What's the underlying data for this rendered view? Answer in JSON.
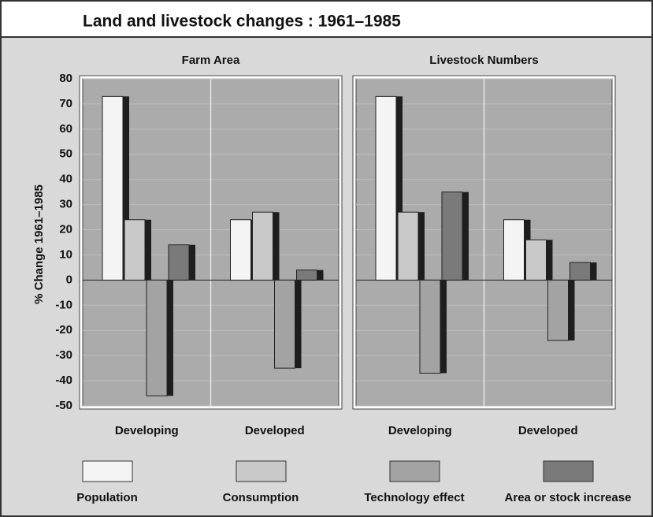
{
  "chart_data": {
    "type": "bar",
    "title": "Land and livestock changes : 1961–1985",
    "y_label": "% Change 1961–1985",
    "ylim": [
      -50,
      80
    ],
    "yticks": [
      -50,
      -40,
      -30,
      -20,
      -10,
      0,
      10,
      20,
      30,
      40,
      50,
      60,
      70,
      80
    ],
    "grid": true,
    "series": [
      {
        "name": "Population",
        "color": "#f4f4f4"
      },
      {
        "name": "Consumption",
        "color": "#c9c9c9"
      },
      {
        "name": "Technology effect",
        "color": "#a3a3a3"
      },
      {
        "name": "Area or stock increase",
        "color": "#7a7a7a"
      }
    ],
    "panels": [
      {
        "title": "Farm Area",
        "categories": [
          "Developing",
          "Developed"
        ],
        "series": [
          {
            "values": [
              73,
              24
            ]
          },
          {
            "values": [
              24,
              27
            ]
          },
          {
            "values": [
              -46,
              -35
            ]
          },
          {
            "values": [
              14,
              4
            ]
          }
        ]
      },
      {
        "title": "Livestock Numbers",
        "categories": [
          "Developing",
          "Developed"
        ],
        "series": [
          {
            "values": [
              73,
              24
            ]
          },
          {
            "values": [
              27,
              16
            ]
          },
          {
            "values": [
              -37,
              -24
            ]
          },
          {
            "values": [
              35,
              7
            ]
          }
        ]
      }
    ]
  }
}
